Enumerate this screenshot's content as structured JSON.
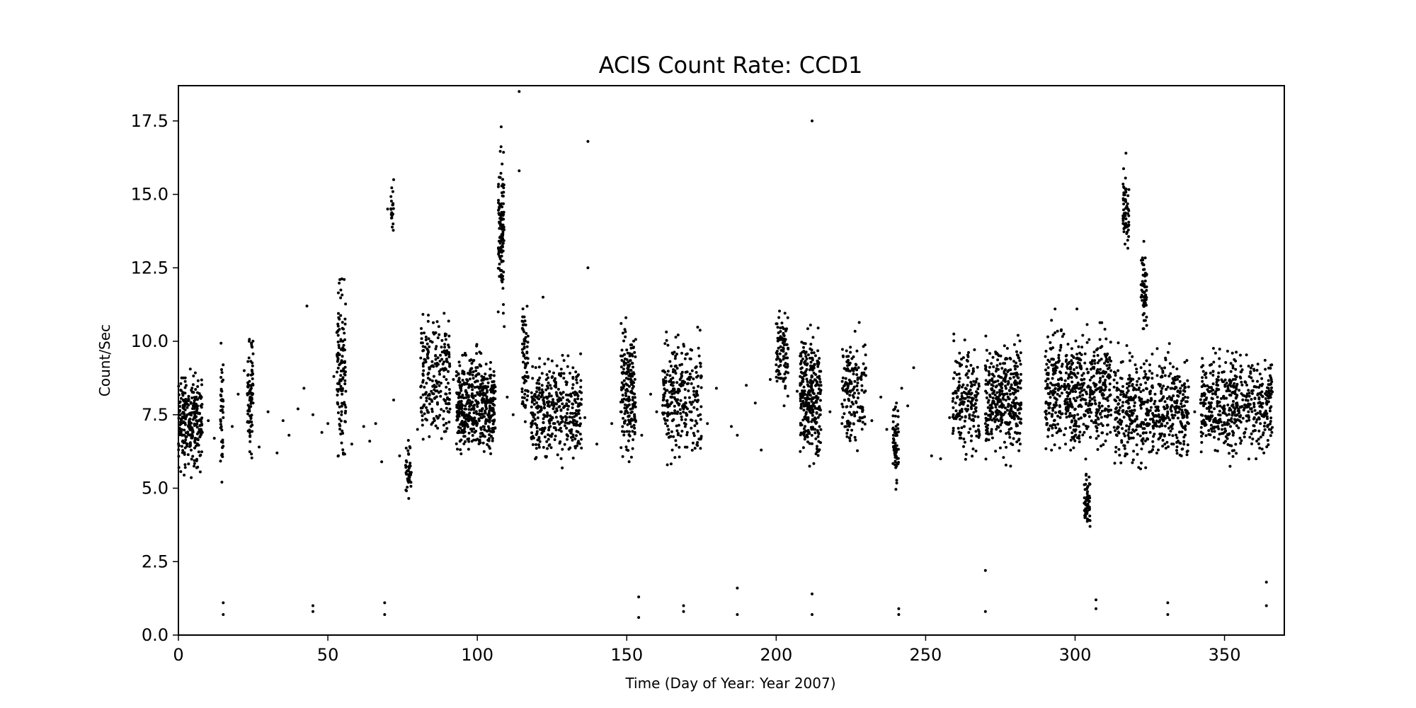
{
  "chart_data": {
    "type": "scatter",
    "title": "ACIS Count Rate: CCD1",
    "xlabel": "Time (Day of Year: Year 2007)",
    "ylabel": "Count/Sec",
    "xlim": [
      0,
      370
    ],
    "ylim": [
      0,
      18.7
    ],
    "xticks": [
      0,
      50,
      100,
      150,
      200,
      250,
      300,
      350
    ],
    "yticks": [
      0.0,
      2.5,
      5.0,
      7.5,
      10.0,
      12.5,
      15.0,
      17.5
    ],
    "xtick_labels": [
      "0",
      "50",
      "100",
      "150",
      "200",
      "250",
      "300",
      "350"
    ],
    "ytick_labels": [
      "0.0",
      "2.5",
      "5.0",
      "7.5",
      "10.0",
      "12.5",
      "15.0",
      "17.5"
    ],
    "grid": false,
    "marker_color": "#000000",
    "series": [
      {
        "x": [
          1,
          2,
          3,
          4,
          5,
          6,
          7,
          8,
          10,
          12,
          15,
          18,
          20,
          22,
          24,
          25,
          27,
          30,
          33,
          35,
          37,
          40,
          42,
          43,
          45,
          48,
          50,
          52,
          53,
          54,
          55,
          56,
          58,
          62,
          64,
          66,
          68,
          70,
          72,
          74,
          77,
          80,
          82,
          84,
          86,
          88,
          90,
          92,
          94,
          96,
          97,
          98,
          100,
          102,
          104,
          106,
          107,
          108,
          109,
          110,
          112,
          114,
          116,
          118,
          120,
          121,
          122,
          124,
          126,
          128,
          130,
          132,
          134,
          136,
          137,
          140,
          145,
          148,
          150,
          151,
          152,
          153,
          155,
          158,
          160,
          163,
          165,
          167,
          169,
          171,
          173,
          175,
          177,
          180,
          185,
          187,
          190,
          193,
          195,
          198,
          200,
          201,
          203,
          207,
          210,
          211,
          212,
          213,
          214,
          215,
          218,
          222,
          225,
          228,
          232,
          235,
          237,
          240,
          242,
          244,
          246,
          252,
          255,
          258,
          260,
          262,
          264,
          266,
          268,
          270,
          272,
          274,
          276,
          278,
          280,
          290,
          293,
          295,
          297,
          300,
          302,
          303,
          304,
          305,
          307,
          308,
          309,
          310,
          311,
          312,
          315,
          316,
          317,
          318,
          320,
          322,
          323,
          325,
          328,
          330,
          332,
          334,
          336,
          338,
          340,
          343,
          345,
          348,
          350,
          352,
          355,
          358,
          360,
          362,
          363,
          364,
          365,
          15,
          45,
          69,
          154,
          169,
          187,
          212,
          241,
          270,
          307,
          331,
          364,
          114,
          212,
          317,
          137,
          72,
          108,
          323,
          15,
          45,
          69,
          154,
          169,
          187,
          212,
          241,
          270,
          307,
          331,
          364
        ],
        "y": [
          7.2,
          6.8,
          7.5,
          6.5,
          7.8,
          8.1,
          7.0,
          6.9,
          7.3,
          6.7,
          7.4,
          7.1,
          8.2,
          9.0,
          8.5,
          7.9,
          6.4,
          7.6,
          6.2,
          7.3,
          6.8,
          7.7,
          8.4,
          11.2,
          7.5,
          6.9,
          7.2,
          8.8,
          10.3,
          12.1,
          10.0,
          8.3,
          6.5,
          7.1,
          6.6,
          7.2,
          5.9,
          14.5,
          8.0,
          6.1,
          5.2,
          7.0,
          9.0,
          8.2,
          9.5,
          9.8,
          9.3,
          8.7,
          7.6,
          7.8,
          8.0,
          7.4,
          7.2,
          7.1,
          7.5,
          8.3,
          11.0,
          12.4,
          10.5,
          8.1,
          7.5,
          15.8,
          9.1,
          7.2,
          8.4,
          7.0,
          11.5,
          7.3,
          7.6,
          8.0,
          8.6,
          9.1,
          7.8,
          7.4,
          12.5,
          6.5,
          7.2,
          7.6,
          8.9,
          9.5,
          8.0,
          7.3,
          6.8,
          8.2,
          7.6,
          7.2,
          8.3,
          7.9,
          7.7,
          8.7,
          9.1,
          8.8,
          7.2,
          8.4,
          7.1,
          6.8,
          8.5,
          7.9,
          6.3,
          8.7,
          9.2,
          10.1,
          8.4,
          8.3,
          7.4,
          6.9,
          8.8,
          7.0,
          9.3,
          8.5,
          7.6,
          7.2,
          6.8,
          7.4,
          7.3,
          8.1,
          7.0,
          5.7,
          8.4,
          7.8,
          9.1,
          6.1,
          6.0,
          7.4,
          8.3,
          7.9,
          8.5,
          7.3,
          6.8,
          7.2,
          7.6,
          7.1,
          7.5,
          7.0,
          7.8,
          7.6,
          7.3,
          7.4,
          7.9,
          7.2,
          8.0,
          7.5,
          4.4,
          3.7,
          7.1,
          7.8,
          8.2,
          8.5,
          9.3,
          9.0,
          7.2,
          7.6,
          14.0,
          7.0,
          7.3,
          7.1,
          11.5,
          9.2,
          7.5,
          7.7,
          7.1,
          7.9,
          7.4,
          7.2,
          7.6,
          7.8,
          7.3,
          7.5,
          7.7,
          7.1,
          7.3,
          7.6,
          7.4,
          7.2,
          7.5,
          7.9,
          7.0,
          0.7,
          0.8,
          0.7,
          0.6,
          0.8,
          0.7,
          0.7,
          0.7,
          0.8,
          0.9,
          0.7,
          1.0,
          18.5,
          17.5,
          16.4,
          16.8,
          15.5,
          17.3,
          13.4,
          1.1,
          1.0,
          1.1,
          1.3,
          1.0,
          1.6,
          1.4,
          0.9,
          2.2,
          1.2,
          1.1,
          1.8
        ]
      }
    ],
    "clusters": [
      {
        "x": [
          0,
          8
        ],
        "y": [
          5.0,
          9.5
        ],
        "n": 260
      },
      {
        "x": [
          14,
          15
        ],
        "y": [
          4.8,
          10.6
        ],
        "n": 40
      },
      {
        "x": [
          23,
          25
        ],
        "y": [
          5.5,
          11.0
        ],
        "n": 80
      },
      {
        "x": [
          53,
          56
        ],
        "y": [
          5.0,
          13.0
        ],
        "n": 120
      },
      {
        "x": [
          71,
          72
        ],
        "y": [
          13.5,
          15.5
        ],
        "n": 20
      },
      {
        "x": [
          76,
          78
        ],
        "y": [
          4.3,
          6.8
        ],
        "n": 40
      },
      {
        "x": [
          81,
          91
        ],
        "y": [
          5.5,
          11.7
        ],
        "n": 220
      },
      {
        "x": [
          93,
          106
        ],
        "y": [
          5.5,
          10.2
        ],
        "n": 450
      },
      {
        "x": [
          107,
          109
        ],
        "y": [
          10.5,
          17.3
        ],
        "n": 110
      },
      {
        "x": [
          115,
          117
        ],
        "y": [
          6.0,
          12.8
        ],
        "n": 70
      },
      {
        "x": [
          118,
          135
        ],
        "y": [
          5.4,
          10.0
        ],
        "n": 360
      },
      {
        "x": [
          148,
          153
        ],
        "y": [
          5.2,
          11.2
        ],
        "n": 180
      },
      {
        "x": [
          162,
          175
        ],
        "y": [
          5.2,
          11.0
        ],
        "n": 260
      },
      {
        "x": [
          200,
          204
        ],
        "y": [
          7.5,
          11.8
        ],
        "n": 90
      },
      {
        "x": [
          208,
          215
        ],
        "y": [
          5.2,
          11.0
        ],
        "n": 300
      },
      {
        "x": [
          222,
          230
        ],
        "y": [
          5.5,
          11.0
        ],
        "n": 160
      },
      {
        "x": [
          239,
          241
        ],
        "y": [
          4.7,
          8.5
        ],
        "n": 60
      },
      {
        "x": [
          259,
          268
        ],
        "y": [
          5.5,
          10.6
        ],
        "n": 180
      },
      {
        "x": [
          270,
          282
        ],
        "y": [
          5.6,
          10.5
        ],
        "n": 360
      },
      {
        "x": [
          290,
          312
        ],
        "y": [
          5.5,
          11.2
        ],
        "n": 560
      },
      {
        "x": [
          303,
          305
        ],
        "y": [
          3.4,
          5.8
        ],
        "n": 60
      },
      {
        "x": [
          316,
          318
        ],
        "y": [
          12.5,
          16.5
        ],
        "n": 60
      },
      {
        "x": [
          322,
          324
        ],
        "y": [
          10.0,
          13.6
        ],
        "n": 60
      },
      {
        "x": [
          313,
          338
        ],
        "y": [
          5.2,
          10.2
        ],
        "n": 520
      },
      {
        "x": [
          342,
          366
        ],
        "y": [
          5.5,
          10.2
        ],
        "n": 500
      }
    ]
  }
}
